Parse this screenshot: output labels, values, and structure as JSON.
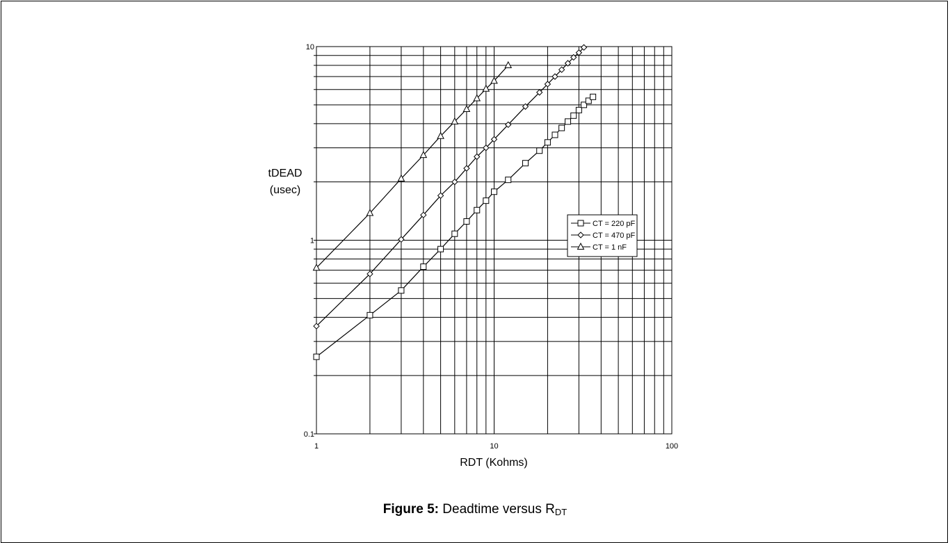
{
  "caption": {
    "label": "Figure 5:",
    "text": "Deadtime versus R",
    "subscript": "DT"
  },
  "chart_data": {
    "type": "line",
    "x_scale": "log",
    "y_scale": "log",
    "xlabel": "RDT (Kohms)",
    "ylabel_lines": [
      "tDEAD",
      "(usec)"
    ],
    "xlim": [
      1,
      100
    ],
    "ylim": [
      0.1,
      10
    ],
    "x_ticks": [
      {
        "value": 1,
        "label": "1"
      },
      {
        "value": 10,
        "label": "10"
      },
      {
        "value": 100,
        "label": "100"
      }
    ],
    "y_ticks": [
      {
        "value": 0.1,
        "label": "0.1"
      },
      {
        "value": 1,
        "label": "1"
      },
      {
        "value": 10,
        "label": "10"
      }
    ],
    "grid": true,
    "legend_position": "right-center",
    "series": [
      {
        "name": "CT = 220 pF",
        "marker": "square",
        "points": [
          [
            1,
            0.25
          ],
          [
            2,
            0.41
          ],
          [
            3,
            0.55
          ],
          [
            4,
            0.73
          ],
          [
            5,
            0.9
          ],
          [
            6,
            1.08
          ],
          [
            7,
            1.25
          ],
          [
            8,
            1.43
          ],
          [
            9,
            1.6
          ],
          [
            10,
            1.78
          ],
          [
            12,
            2.05
          ],
          [
            15,
            2.5
          ],
          [
            18,
            2.9
          ],
          [
            20,
            3.2
          ],
          [
            22,
            3.5
          ],
          [
            24,
            3.8
          ],
          [
            26,
            4.1
          ],
          [
            28,
            4.4
          ],
          [
            30,
            4.7
          ],
          [
            32,
            5.0
          ],
          [
            34,
            5.25
          ],
          [
            36,
            5.5
          ]
        ]
      },
      {
        "name": "CT = 470 pF",
        "marker": "diamond",
        "points": [
          [
            1,
            0.36
          ],
          [
            2,
            0.67
          ],
          [
            3,
            1.01
          ],
          [
            4,
            1.35
          ],
          [
            5,
            1.7
          ],
          [
            6,
            2.0
          ],
          [
            7,
            2.35
          ],
          [
            8,
            2.7
          ],
          [
            9,
            3.0
          ],
          [
            10,
            3.32
          ],
          [
            12,
            3.95
          ],
          [
            15,
            4.9
          ],
          [
            18,
            5.8
          ],
          [
            20,
            6.4
          ],
          [
            22,
            7.0
          ],
          [
            24,
            7.6
          ],
          [
            26,
            8.2
          ],
          [
            28,
            8.8
          ],
          [
            30,
            9.3
          ],
          [
            32,
            9.9
          ]
        ]
      },
      {
        "name": "CT = 1 nF",
        "marker": "triangle",
        "points": [
          [
            1,
            0.72
          ],
          [
            2,
            1.38
          ],
          [
            3,
            2.08
          ],
          [
            4,
            2.75
          ],
          [
            5,
            3.45
          ],
          [
            6,
            4.1
          ],
          [
            7,
            4.75
          ],
          [
            8,
            5.4
          ],
          [
            9,
            6.05
          ],
          [
            10,
            6.65
          ],
          [
            12,
            8.0
          ]
        ]
      }
    ]
  }
}
